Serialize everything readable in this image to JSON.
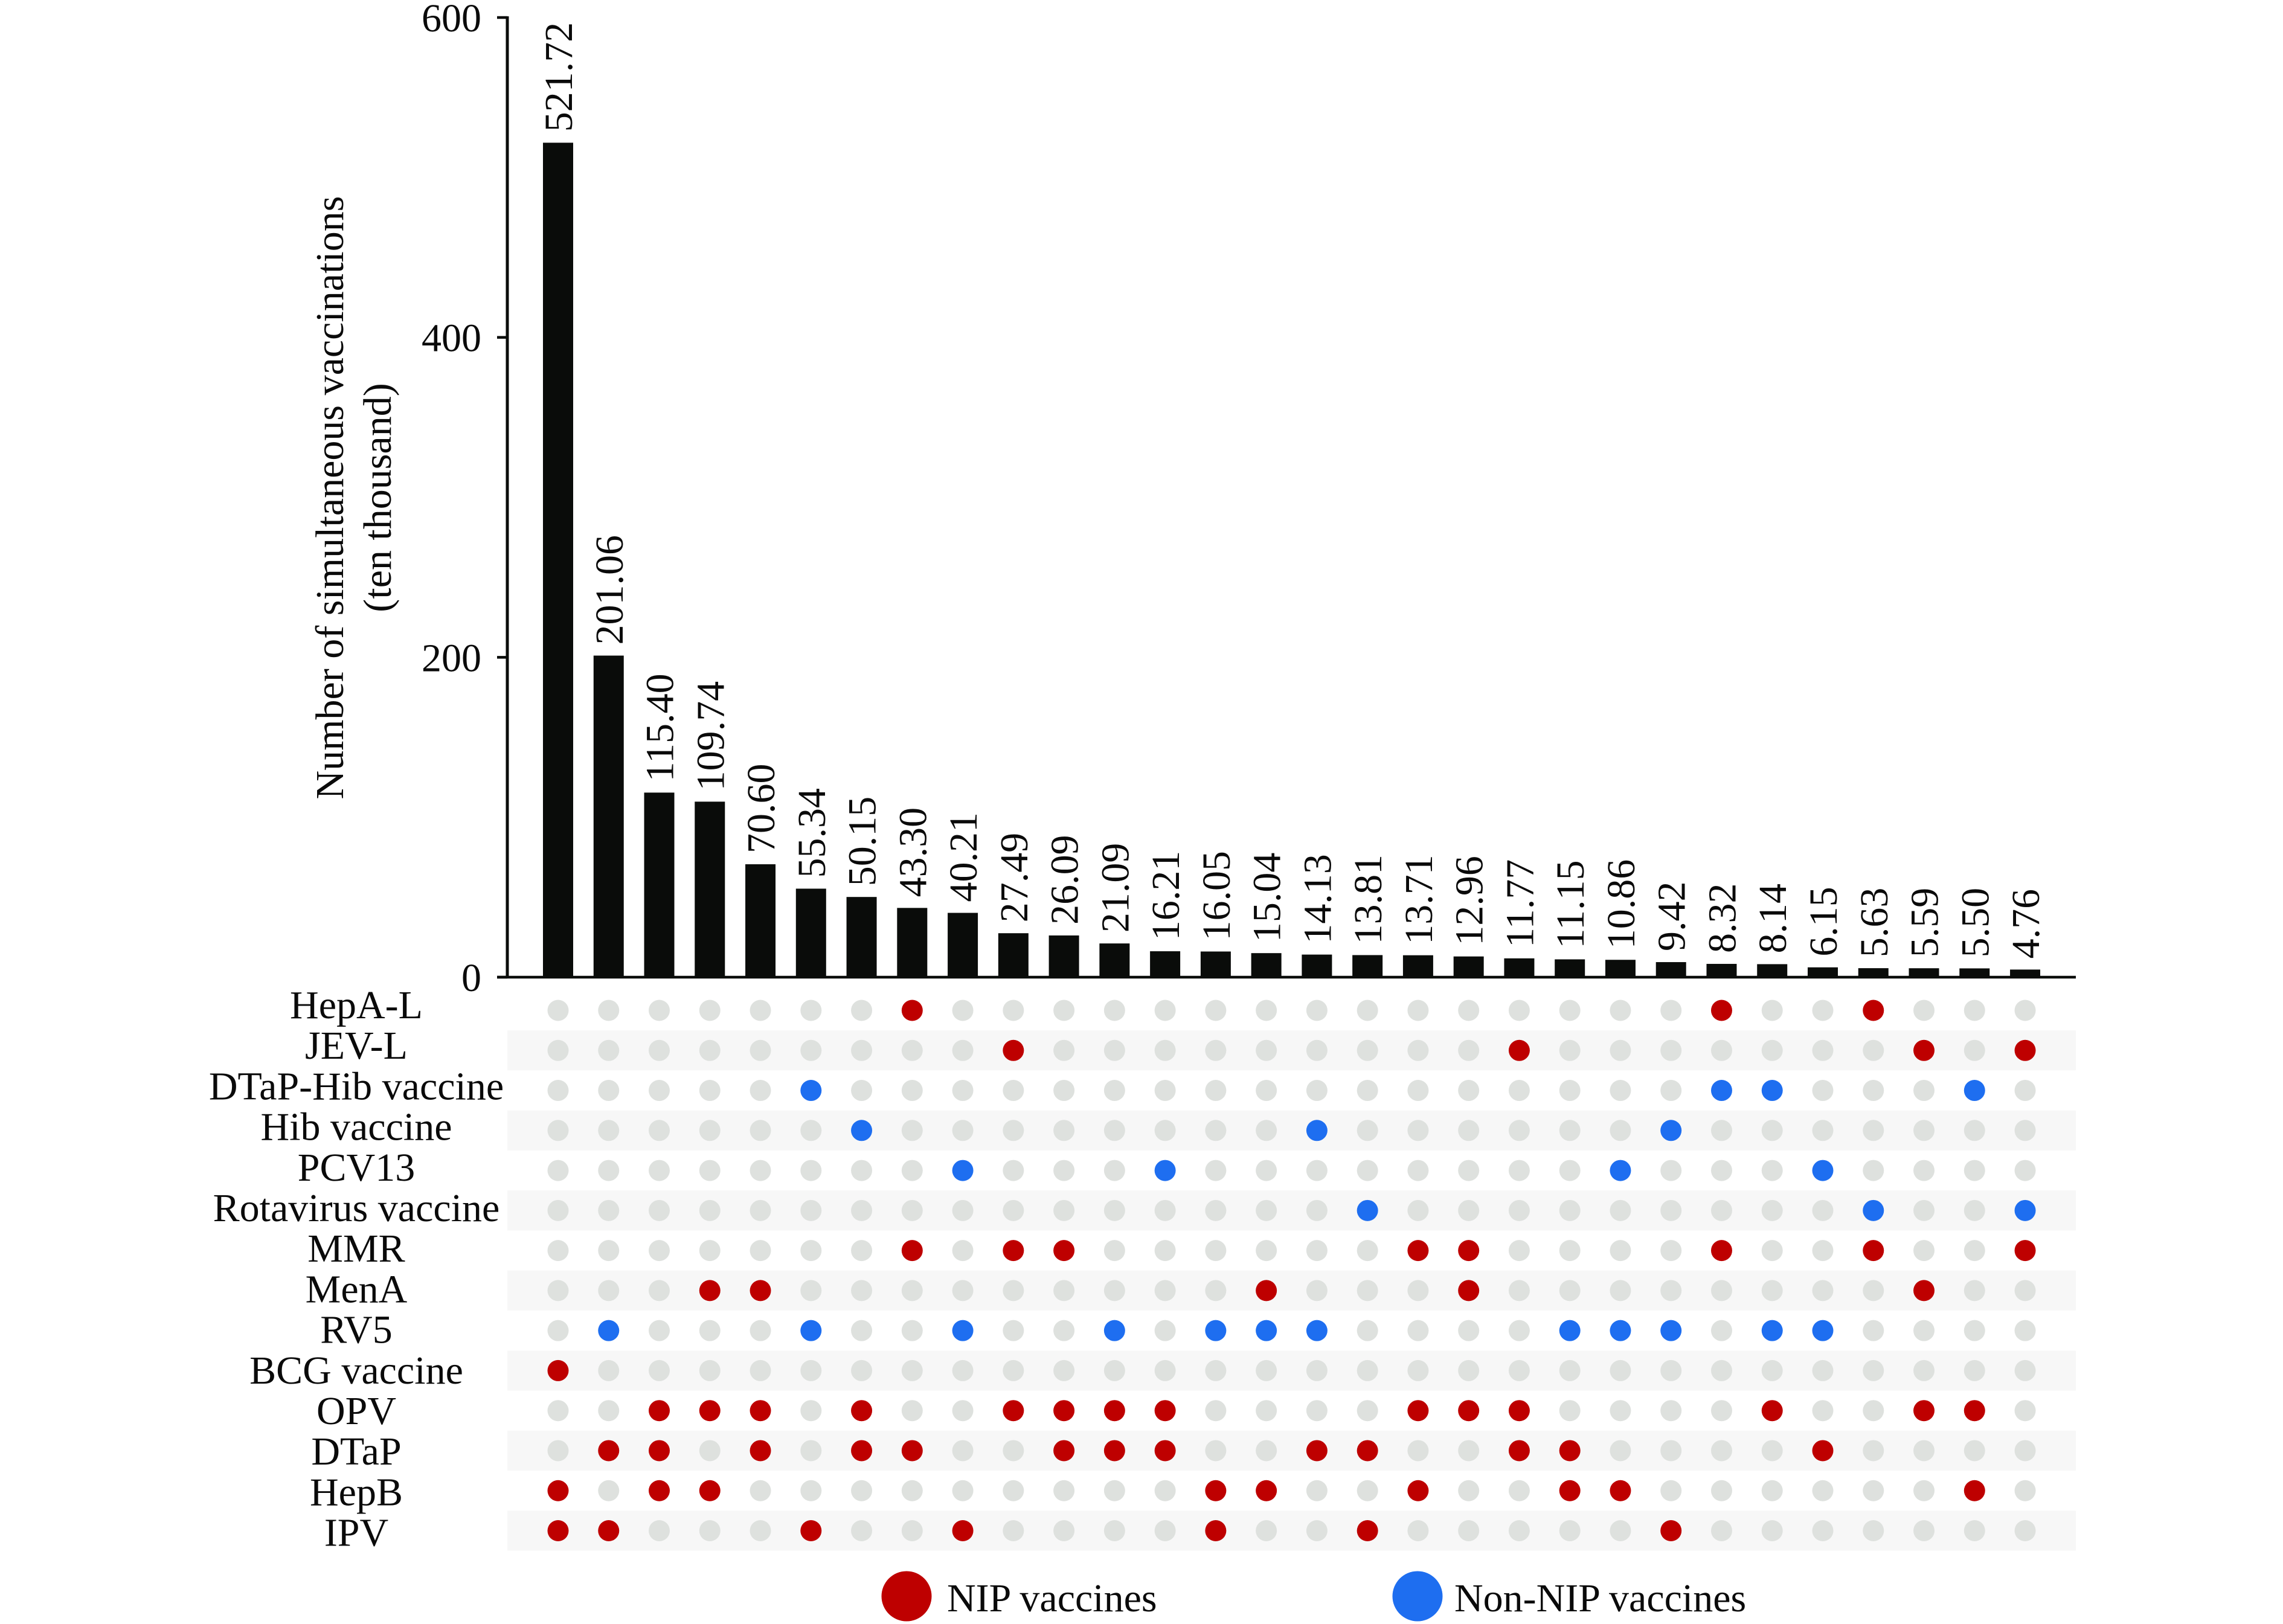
{
  "chart_data": {
    "type": "bar",
    "subtype": "upset",
    "title": "",
    "xlabel": "",
    "ylabel": [
      "Number of simultaneous vaccinations",
      "(ten thousand)"
    ],
    "ylim": [
      0,
      600
    ],
    "yticks": [
      0,
      200,
      400,
      600
    ],
    "ytick_labels": [
      "0",
      "200",
      "400",
      "600"
    ],
    "grid": false,
    "sets": [
      {
        "name": "HepA-L",
        "group": "NIP"
      },
      {
        "name": "JEV-L",
        "group": "NIP"
      },
      {
        "name": "DTaP-Hib vaccine",
        "group": "Non-NIP"
      },
      {
        "name": "Hib vaccine",
        "group": "Non-NIP"
      },
      {
        "name": "PCV13",
        "group": "Non-NIP"
      },
      {
        "name": "Rotavirus vaccine",
        "group": "Non-NIP"
      },
      {
        "name": "MMR",
        "group": "NIP"
      },
      {
        "name": "MenA",
        "group": "NIP"
      },
      {
        "name": "RV5",
        "group": "Non-NIP"
      },
      {
        "name": "BCG vaccine",
        "group": "NIP"
      },
      {
        "name": "OPV",
        "group": "NIP"
      },
      {
        "name": "DTaP",
        "group": "NIP"
      },
      {
        "name": "HepB",
        "group": "NIP"
      },
      {
        "name": "IPV",
        "group": "NIP"
      }
    ],
    "intersections": [
      {
        "value": 521.72,
        "label": "521.72",
        "members": [
          "BCG vaccine",
          "HepB",
          "IPV"
        ]
      },
      {
        "value": 201.06,
        "label": "201.06",
        "members": [
          "RV5",
          "DTaP",
          "IPV"
        ]
      },
      {
        "value": 115.4,
        "label": "115.40",
        "members": [
          "OPV",
          "DTaP",
          "HepB"
        ]
      },
      {
        "value": 109.74,
        "label": "109.74",
        "members": [
          "MenA",
          "OPV",
          "HepB"
        ]
      },
      {
        "value": 70.6,
        "label": "70.60",
        "members": [
          "MenA",
          "OPV",
          "DTaP"
        ]
      },
      {
        "value": 55.34,
        "label": "55.34",
        "members": [
          "DTaP-Hib vaccine",
          "RV5",
          "IPV"
        ]
      },
      {
        "value": 50.15,
        "label": "50.15",
        "members": [
          "Hib vaccine",
          "OPV",
          "DTaP"
        ]
      },
      {
        "value": 43.3,
        "label": "43.30",
        "members": [
          "HepA-L",
          "MMR",
          "DTaP"
        ]
      },
      {
        "value": 40.21,
        "label": "40.21",
        "members": [
          "PCV13",
          "RV5",
          "IPV"
        ]
      },
      {
        "value": 27.49,
        "label": "27.49",
        "members": [
          "JEV-L",
          "MMR",
          "OPV"
        ]
      },
      {
        "value": 26.09,
        "label": "26.09",
        "members": [
          "MMR",
          "OPV",
          "DTaP"
        ]
      },
      {
        "value": 21.09,
        "label": "21.09",
        "members": [
          "RV5",
          "OPV",
          "DTaP"
        ]
      },
      {
        "value": 16.21,
        "label": "16.21",
        "members": [
          "PCV13",
          "OPV",
          "DTaP"
        ]
      },
      {
        "value": 16.05,
        "label": "16.05",
        "members": [
          "RV5",
          "HepB",
          "IPV"
        ]
      },
      {
        "value": 15.04,
        "label": "15.04",
        "members": [
          "MenA",
          "RV5",
          "HepB"
        ]
      },
      {
        "value": 14.13,
        "label": "14.13",
        "members": [
          "Hib vaccine",
          "RV5",
          "DTaP"
        ]
      },
      {
        "value": 13.81,
        "label": "13.81",
        "members": [
          "Rotavirus vaccine",
          "DTaP",
          "IPV"
        ]
      },
      {
        "value": 13.71,
        "label": "13.71",
        "members": [
          "MMR",
          "OPV",
          "HepB"
        ]
      },
      {
        "value": 12.96,
        "label": "12.96",
        "members": [
          "MMR",
          "MenA",
          "OPV"
        ]
      },
      {
        "value": 11.77,
        "label": "11.77",
        "members": [
          "JEV-L",
          "OPV",
          "DTaP"
        ]
      },
      {
        "value": 11.15,
        "label": "11.15",
        "members": [
          "RV5",
          "DTaP",
          "HepB"
        ]
      },
      {
        "value": 10.86,
        "label": "10.86",
        "members": [
          "PCV13",
          "RV5",
          "HepB"
        ]
      },
      {
        "value": 9.42,
        "label": "9.42",
        "members": [
          "Hib vaccine",
          "RV5",
          "IPV"
        ]
      },
      {
        "value": 8.32,
        "label": "8.32",
        "members": [
          "HepA-L",
          "DTaP-Hib vaccine",
          "MMR"
        ]
      },
      {
        "value": 8.14,
        "label": "8.14",
        "members": [
          "DTaP-Hib vaccine",
          "RV5",
          "OPV"
        ]
      },
      {
        "value": 6.15,
        "label": "6.15",
        "members": [
          "PCV13",
          "RV5",
          "DTaP"
        ]
      },
      {
        "value": 5.63,
        "label": "5.63",
        "members": [
          "HepA-L",
          "Rotavirus vaccine",
          "MMR"
        ]
      },
      {
        "value": 5.59,
        "label": "5.59",
        "members": [
          "JEV-L",
          "MenA",
          "OPV"
        ]
      },
      {
        "value": 5.5,
        "label": "5.50",
        "members": [
          "DTaP-Hib vaccine",
          "OPV",
          "HepB"
        ]
      },
      {
        "value": 4.76,
        "label": "4.76",
        "members": [
          "JEV-L",
          "Rotavirus vaccine",
          "MMR"
        ]
      }
    ],
    "legend": {
      "position": "bottom",
      "entries": [
        {
          "label": "NIP vaccines",
          "group": "NIP"
        },
        {
          "label": "Non-NIP vaccines",
          "group": "Non-NIP"
        }
      ]
    }
  },
  "colors": {
    "bar": "#0a0c0a",
    "axis": "#0a0c0a",
    "nip": "#be0000",
    "non_nip": "#1e6ef0",
    "dot_inactive": "#dee1de",
    "row_band": "#f7f7f7"
  }
}
